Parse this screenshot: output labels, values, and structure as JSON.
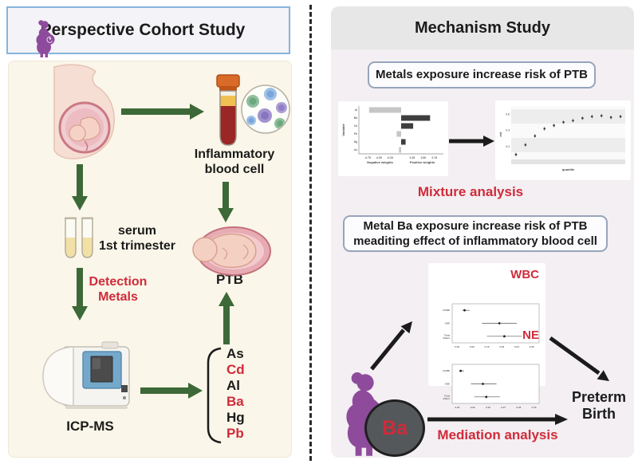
{
  "left_panel": {
    "title": "Perspective Cohort Study",
    "inflammatory_line1": "Inflammatory",
    "inflammatory_line2": "blood cell",
    "serum_line1": "serum",
    "serum_line2": "1st trimester",
    "detection_line1": "Detection",
    "detection_line2": "Metals",
    "ptb_label": "PTB",
    "icpms_label": "ICP-MS",
    "metals": [
      {
        "symbol": "As",
        "color": "#1B1B1B"
      },
      {
        "symbol": "Cd",
        "color": "#D02B3A"
      },
      {
        "symbol": "Al",
        "color": "#1B1B1B"
      },
      {
        "symbol": "Ba",
        "color": "#D02B3A"
      },
      {
        "symbol": "Hg",
        "color": "#1B1B1B"
      },
      {
        "symbol": "Pb",
        "color": "#D02B3A"
      }
    ]
  },
  "right_panel": {
    "title": "Mechanism Study",
    "finding1": "Metals exposure increase risk of PTB",
    "mixture_label": "Mixture analysis",
    "finding2_line1": "Metal Ba exposure increase risk of PTB",
    "finding2_line2": "meaditing effect of inflammatory blood cell",
    "ba_label": "Ba",
    "mediation_label": "Mediation analysis",
    "preterm_line1": "Preterm",
    "preterm_line2": "Birth"
  },
  "colors": {
    "arrow_green": "#3C6937",
    "accent_red": "#D02B3A",
    "icon_purple": "#8E4B9C",
    "left_panel_bg": "#FAF6E9",
    "right_panel_bg": "#F3EFF2",
    "header_gray": "#E8E7E7",
    "title_box_border": "#85B5DC"
  },
  "chart_data": [
    {
      "type": "bar",
      "orientation": "horizontal",
      "title": "",
      "ylabel": "Variable",
      "xlabel_neg": "Negative weights",
      "xlabel_pos": "Positive weights",
      "categories": [
        "Al",
        "Ba",
        "Cd",
        "Pb",
        "Hg",
        "As"
      ],
      "values": [
        -0.72,
        0.65,
        0.27,
        -0.1,
        0.1,
        -0.05
      ],
      "xticks": [
        -0.75,
        -0.5,
        -0.25,
        0.25,
        0.5,
        0.75
      ],
      "xlim": [
        -0.95,
        0.95
      ],
      "neg_color": "#C6C6C6",
      "pos_color": "#3E3E3E",
      "grid": false
    },
    {
      "type": "scatter",
      "title": "",
      "xlabel": "quantile",
      "ylabel": "est",
      "x": [
        1,
        2,
        3,
        4,
        5,
        6,
        7,
        8,
        9,
        10,
        11,
        12
      ],
      "y": [
        0.1,
        0.22,
        0.33,
        0.42,
        0.46,
        0.5,
        0.52,
        0.55,
        0.57,
        0.58,
        0.56,
        0.57
      ],
      "yticks": [
        0.2,
        0.4,
        0.6
      ],
      "ylim": [
        0,
        0.7
      ],
      "grid": true
    },
    {
      "type": "forest",
      "title": "WBC",
      "rows": [
        {
          "label": "ACME",
          "est": 0.03,
          "lo": 0.02,
          "hi": 0.05
        },
        {
          "label": "ADE",
          "est": 0.17,
          "lo": 0.1,
          "hi": 0.24
        },
        {
          "label": "Total Effect",
          "est": 0.19,
          "lo": 0.12,
          "hi": 0.26
        }
      ],
      "xticks": [
        0.0,
        0.06,
        0.12,
        0.18,
        0.24,
        0.3
      ],
      "xlim": [
        -0.02,
        0.33
      ]
    },
    {
      "type": "forest",
      "title": "NE",
      "rows": [
        {
          "label": "ACME",
          "est": 0.02,
          "lo": 0.01,
          "hi": 0.04
        },
        {
          "label": "ADE",
          "est": 0.15,
          "lo": 0.08,
          "hi": 0.23
        },
        {
          "label": "Total Effect",
          "est": 0.17,
          "lo": 0.1,
          "hi": 0.25
        }
      ],
      "xticks": [
        0.0,
        0.09,
        0.18,
        0.27,
        0.36,
        0.45
      ],
      "xlim": [
        -0.03,
        0.48
      ]
    }
  ]
}
